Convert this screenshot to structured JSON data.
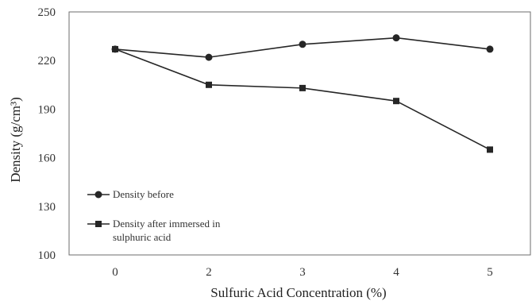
{
  "chart_data": {
    "type": "line",
    "categories": [
      "0",
      "2",
      "3",
      "4",
      "5"
    ],
    "series": [
      {
        "name": "Density before",
        "marker": "circle",
        "values": [
          227,
          222,
          230,
          234,
          227
        ]
      },
      {
        "name": "Density after immersed in sulphuric acid",
        "name_lines": [
          "Density after immersed in",
          "sulphuric acid"
        ],
        "marker": "square",
        "values": [
          227,
          205,
          203,
          195,
          165
        ]
      }
    ],
    "xlabel": "Sulfuric Acid Concentration (%)",
    "ylabel": "Density (g/cm³)",
    "ylim": [
      100,
      250
    ],
    "yticks": [
      100,
      130,
      160,
      190,
      220,
      250
    ],
    "grid": false,
    "legend": "lower-left",
    "colors": {
      "line": "#262626",
      "axis": "#6e6e6e"
    }
  }
}
